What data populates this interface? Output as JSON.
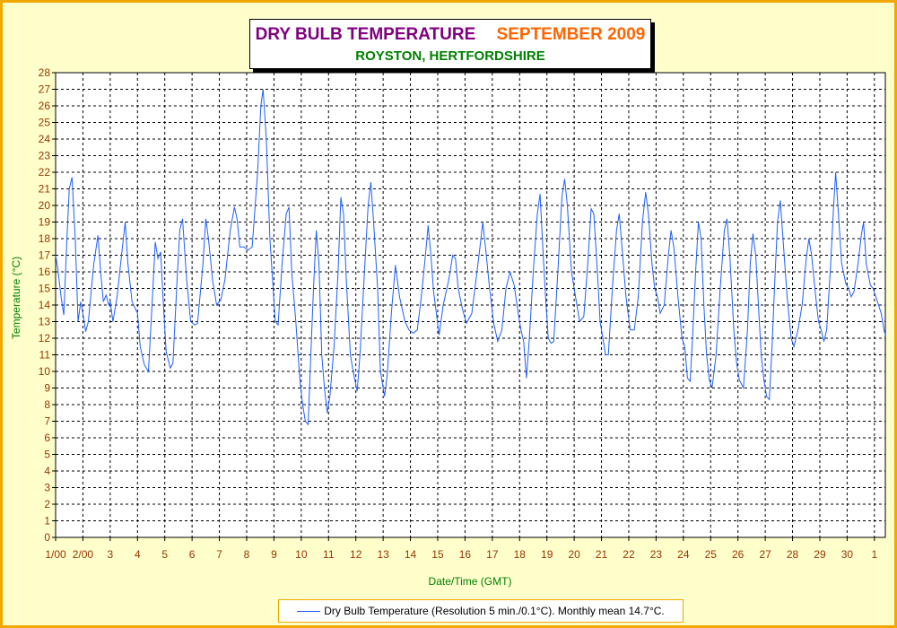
{
  "chart_data": {
    "type": "line",
    "title": "DRY BULB TEMPERATURE",
    "title_date": "SEPTEMBER 2009",
    "subtitle": "ROYSTON, HERTFORDSHIRE",
    "xlabel": "Date/Time (GMT)",
    "ylabel": "Temperature (°C)",
    "ylim": [
      0,
      28
    ],
    "xlim": [
      0,
      30.4
    ],
    "grid": true,
    "legend_position": "bottom-center",
    "x_tick_labels": [
      "1/00",
      "2/00",
      "3",
      "4",
      "5",
      "6",
      "7",
      "8",
      "9",
      "10",
      "11",
      "12",
      "13",
      "14",
      "15",
      "16",
      "17",
      "18",
      "19",
      "20",
      "21",
      "22",
      "23",
      "24",
      "25",
      "26",
      "27",
      "28",
      "29",
      "30",
      "1"
    ],
    "y_tick_labels": [
      "0",
      "1",
      "2",
      "3",
      "4",
      "5",
      "6",
      "7",
      "8",
      "9",
      "10",
      "11",
      "12",
      "13",
      "14",
      "15",
      "16",
      "17",
      "18",
      "19",
      "20",
      "21",
      "22",
      "23",
      "24",
      "25",
      "26",
      "27",
      "28"
    ],
    "series": [
      {
        "name": "Dry Bulb Temperature (Resolution 5 min./0.1°C). Monthly mean 14.7°C.",
        "color": "#1f5fff",
        "points": [
          [
            0.0,
            17.0
          ],
          [
            0.08,
            16.2
          ],
          [
            0.2,
            14.5
          ],
          [
            0.3,
            13.4
          ],
          [
            0.4,
            17.5
          ],
          [
            0.5,
            21.0
          ],
          [
            0.6,
            21.7
          ],
          [
            0.72,
            18.0
          ],
          [
            0.82,
            13.0
          ],
          [
            0.92,
            14.2
          ],
          [
            1.0,
            13.5
          ],
          [
            1.1,
            12.4
          ],
          [
            1.2,
            13.0
          ],
          [
            1.4,
            16.5
          ],
          [
            1.55,
            18.2
          ],
          [
            1.65,
            16.0
          ],
          [
            1.75,
            14.2
          ],
          [
            1.85,
            14.6
          ],
          [
            1.95,
            14.0
          ],
          [
            2.0,
            14.2
          ],
          [
            2.1,
            13.0
          ],
          [
            2.25,
            14.5
          ],
          [
            2.45,
            17.5
          ],
          [
            2.55,
            19.0
          ],
          [
            2.65,
            16.5
          ],
          [
            2.8,
            14.2
          ],
          [
            3.0,
            13.5
          ],
          [
            3.1,
            11.5
          ],
          [
            3.25,
            10.4
          ],
          [
            3.4,
            10.0
          ],
          [
            3.55,
            14.5
          ],
          [
            3.65,
            17.8
          ],
          [
            3.75,
            16.8
          ],
          [
            3.85,
            17.2
          ],
          [
            3.95,
            14.0
          ],
          [
            4.05,
            11.2
          ],
          [
            4.2,
            10.2
          ],
          [
            4.3,
            10.5
          ],
          [
            4.45,
            15.5
          ],
          [
            4.55,
            18.5
          ],
          [
            4.65,
            19.2
          ],
          [
            4.8,
            15.5
          ],
          [
            4.95,
            13.0
          ],
          [
            5.1,
            12.8
          ],
          [
            5.2,
            12.9
          ],
          [
            5.4,
            16.5
          ],
          [
            5.5,
            19.2
          ],
          [
            5.6,
            18.0
          ],
          [
            5.75,
            15.5
          ],
          [
            5.9,
            14.0
          ],
          [
            6.05,
            14.3
          ],
          [
            6.2,
            15.5
          ],
          [
            6.4,
            18.5
          ],
          [
            6.55,
            19.9
          ],
          [
            6.65,
            19.2
          ],
          [
            6.75,
            17.5
          ],
          [
            6.9,
            17.5
          ],
          [
            7.05,
            17.3
          ],
          [
            7.2,
            17.5
          ],
          [
            7.4,
            22.0
          ],
          [
            7.52,
            26.0
          ],
          [
            7.6,
            27.0
          ],
          [
            7.72,
            24.0
          ],
          [
            7.85,
            18.0
          ],
          [
            7.95,
            15.5
          ],
          [
            8.05,
            13.0
          ],
          [
            8.15,
            12.8
          ],
          [
            8.3,
            16.5
          ],
          [
            8.45,
            19.5
          ],
          [
            8.55,
            19.9
          ],
          [
            8.65,
            16.0
          ],
          [
            8.8,
            13.0
          ],
          [
            8.95,
            9.5
          ],
          [
            9.05,
            8.0
          ],
          [
            9.15,
            7.0
          ],
          [
            9.25,
            6.8
          ],
          [
            9.35,
            11.0
          ],
          [
            9.45,
            15.0
          ],
          [
            9.55,
            18.5
          ],
          [
            9.65,
            16.5
          ],
          [
            9.75,
            11.0
          ],
          [
            9.85,
            9.0
          ],
          [
            9.95,
            7.5
          ],
          [
            10.05,
            8.5
          ],
          [
            10.2,
            11.5
          ],
          [
            10.35,
            16.0
          ],
          [
            10.45,
            20.5
          ],
          [
            10.55,
            19.5
          ],
          [
            10.65,
            15.5
          ],
          [
            10.8,
            11.0
          ],
          [
            10.9,
            10.0
          ],
          [
            11.05,
            8.8
          ],
          [
            11.15,
            11.0
          ],
          [
            11.3,
            15.5
          ],
          [
            11.45,
            20.0
          ],
          [
            11.55,
            21.4
          ],
          [
            11.65,
            19.0
          ],
          [
            11.8,
            15.0
          ],
          [
            11.9,
            10.0
          ],
          [
            12.05,
            8.5
          ],
          [
            12.15,
            9.8
          ],
          [
            12.3,
            13.5
          ],
          [
            12.45,
            16.4
          ],
          [
            12.6,
            14.5
          ],
          [
            12.8,
            13.0
          ],
          [
            12.95,
            12.5
          ],
          [
            13.1,
            12.3
          ],
          [
            13.25,
            12.5
          ],
          [
            13.4,
            14.5
          ],
          [
            13.55,
            17.0
          ],
          [
            13.65,
            18.8
          ],
          [
            13.75,
            17.0
          ],
          [
            13.85,
            14.8
          ],
          [
            13.95,
            13.5
          ],
          [
            14.05,
            12.2
          ],
          [
            14.2,
            14.0
          ],
          [
            14.4,
            15.5
          ],
          [
            14.55,
            17.0
          ],
          [
            14.65,
            16.8
          ],
          [
            14.75,
            15.0
          ],
          [
            14.9,
            13.8
          ],
          [
            15.05,
            12.9
          ],
          [
            15.25,
            13.5
          ],
          [
            15.4,
            15.5
          ],
          [
            15.55,
            17.5
          ],
          [
            15.65,
            19.0
          ],
          [
            15.75,
            17.5
          ],
          [
            15.9,
            15.0
          ],
          [
            16.05,
            12.9
          ],
          [
            16.2,
            11.8
          ],
          [
            16.35,
            12.5
          ],
          [
            16.5,
            15.0
          ],
          [
            16.65,
            16.0
          ],
          [
            16.8,
            15.2
          ],
          [
            16.95,
            13.5
          ],
          [
            17.05,
            12.5
          ],
          [
            17.15,
            11.8
          ],
          [
            17.25,
            9.6
          ],
          [
            17.35,
            11.8
          ],
          [
            17.5,
            16.0
          ],
          [
            17.65,
            19.5
          ],
          [
            17.75,
            20.7
          ],
          [
            17.85,
            17.5
          ],
          [
            17.95,
            14.5
          ],
          [
            18.05,
            12.0
          ],
          [
            18.15,
            11.7
          ],
          [
            18.25,
            11.8
          ],
          [
            18.4,
            16.0
          ],
          [
            18.55,
            20.5
          ],
          [
            18.65,
            21.6
          ],
          [
            18.75,
            20.0
          ],
          [
            18.9,
            16.0
          ],
          [
            19.05,
            14.5
          ],
          [
            19.2,
            13.0
          ],
          [
            19.35,
            13.3
          ],
          [
            19.5,
            16.5
          ],
          [
            19.62,
            19.8
          ],
          [
            19.72,
            19.5
          ],
          [
            19.85,
            16.0
          ],
          [
            19.95,
            13.0
          ],
          [
            20.05,
            12.0
          ],
          [
            20.15,
            11.0
          ],
          [
            20.25,
            11.0
          ],
          [
            20.4,
            15.0
          ],
          [
            20.55,
            18.5
          ],
          [
            20.65,
            19.5
          ],
          [
            20.75,
            17.5
          ],
          [
            20.9,
            14.5
          ],
          [
            21.05,
            12.5
          ],
          [
            21.2,
            12.5
          ],
          [
            21.35,
            14.5
          ],
          [
            21.5,
            19.0
          ],
          [
            21.62,
            20.8
          ],
          [
            21.72,
            19.5
          ],
          [
            21.85,
            16.5
          ],
          [
            21.95,
            15.0
          ],
          [
            22.05,
            14.5
          ],
          [
            22.15,
            13.5
          ],
          [
            22.3,
            14.0
          ],
          [
            22.45,
            17.0
          ],
          [
            22.55,
            18.5
          ],
          [
            22.65,
            17.5
          ],
          [
            22.8,
            14.5
          ],
          [
            22.95,
            12.0
          ],
          [
            23.05,
            11.5
          ],
          [
            23.15,
            9.6
          ],
          [
            23.25,
            9.4
          ],
          [
            23.35,
            12.5
          ],
          [
            23.45,
            16.0
          ],
          [
            23.55,
            19.0
          ],
          [
            23.65,
            18.0
          ],
          [
            23.75,
            14.0
          ],
          [
            23.85,
            11.0
          ],
          [
            23.95,
            9.5
          ],
          [
            24.05,
            9.0
          ],
          [
            24.2,
            11.0
          ],
          [
            24.35,
            15.0
          ],
          [
            24.5,
            18.5
          ],
          [
            24.6,
            19.2
          ],
          [
            24.7,
            17.0
          ],
          [
            24.85,
            12.5
          ],
          [
            24.95,
            10.5
          ],
          [
            25.05,
            9.5
          ],
          [
            25.2,
            9.0
          ],
          [
            25.35,
            12.5
          ],
          [
            25.45,
            16.5
          ],
          [
            25.55,
            18.3
          ],
          [
            25.65,
            17.0
          ],
          [
            25.75,
            14.0
          ],
          [
            25.85,
            11.0
          ],
          [
            25.95,
            9.5
          ],
          [
            26.05,
            8.5
          ],
          [
            26.15,
            8.3
          ],
          [
            26.25,
            11.5
          ],
          [
            26.35,
            15.5
          ],
          [
            26.45,
            19.0
          ],
          [
            26.55,
            20.3
          ],
          [
            26.65,
            18.0
          ],
          [
            26.8,
            14.5
          ],
          [
            26.95,
            12.0
          ],
          [
            27.05,
            11.5
          ],
          [
            27.2,
            12.5
          ],
          [
            27.35,
            14.0
          ],
          [
            27.5,
            16.8
          ],
          [
            27.6,
            18.0
          ],
          [
            27.7,
            17.0
          ],
          [
            27.85,
            14.5
          ],
          [
            27.95,
            13.0
          ],
          [
            28.05,
            12.5
          ],
          [
            28.15,
            11.8
          ],
          [
            28.25,
            12.5
          ],
          [
            28.4,
            16.5
          ],
          [
            28.5,
            19.8
          ],
          [
            28.58,
            22.0
          ],
          [
            28.68,
            19.5
          ],
          [
            28.8,
            16.5
          ],
          [
            28.95,
            15.3
          ],
          [
            29.05,
            15.0
          ],
          [
            29.15,
            14.5
          ],
          [
            29.25,
            14.8
          ],
          [
            29.4,
            16.5
          ],
          [
            29.52,
            18.2
          ],
          [
            29.6,
            19.0
          ],
          [
            29.7,
            16.5
          ],
          [
            29.85,
            15.2
          ],
          [
            29.95,
            15.0
          ],
          [
            30.05,
            14.5
          ],
          [
            30.15,
            14.0
          ],
          [
            30.25,
            13.5
          ],
          [
            30.35,
            12.5
          ],
          [
            30.4,
            12.2
          ]
        ]
      }
    ]
  }
}
